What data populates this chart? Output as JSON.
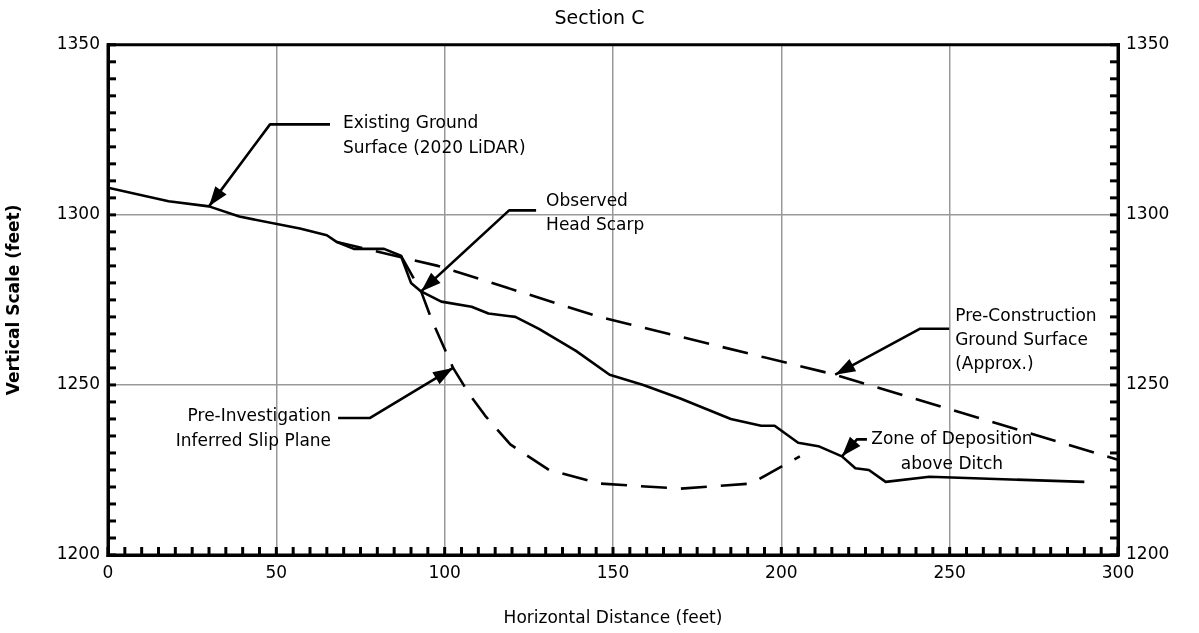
{
  "chart_data": {
    "type": "line",
    "title": "Section C",
    "xlabel": "Horizontal Distance (feet)",
    "ylabel": "Vertical Scale (feet)",
    "xlim": [
      0,
      300
    ],
    "xticks": [
      0,
      {
        "value": 5,
        "label": null
      },
      {
        "value": 10,
        "label": null
      },
      {
        "value": 15,
        "label": null
      },
      {
        "value": 20,
        "label": null
      },
      {
        "value": 25,
        "label": null
      },
      {
        "value": 30,
        "label": null
      },
      {
        "value": 35,
        "label": null
      },
      {
        "value": 40,
        "label": null
      },
      {
        "value": 45,
        "label": null
      },
      50,
      {
        "value": 55,
        "label": null
      },
      {
        "value": 60,
        "label": null
      },
      {
        "value": 65,
        "label": null
      },
      {
        "value": 70,
        "label": null
      },
      {
        "value": 75,
        "label": null
      },
      {
        "value": 80,
        "label": null
      },
      {
        "value": 85,
        "label": null
      },
      {
        "value": 90,
        "label": null
      },
      {
        "value": 95,
        "label": null
      },
      100,
      {
        "value": 105,
        "label": null
      },
      {
        "value": 110,
        "label": null
      },
      {
        "value": 115,
        "label": null
      },
      {
        "value": 120,
        "label": null
      },
      {
        "value": 125,
        "label": null
      },
      {
        "value": 130,
        "label": null
      },
      {
        "value": 135,
        "label": null
      },
      {
        "value": 140,
        "label": null
      },
      {
        "value": 145,
        "label": null
      },
      150,
      {
        "value": 155,
        "label": null
      },
      {
        "value": 160,
        "label": null
      },
      {
        "value": 165,
        "label": null
      },
      {
        "value": 170,
        "label": null
      },
      {
        "value": 175,
        "label": null
      },
      {
        "value": 180,
        "label": null
      },
      {
        "value": 185,
        "label": null
      },
      {
        "value": 190,
        "label": null
      },
      {
        "value": 195,
        "label": null
      },
      200,
      {
        "value": 205,
        "label": null
      },
      {
        "value": 210,
        "label": null
      },
      {
        "value": 215,
        "label": null
      },
      {
        "value": 220,
        "label": null
      },
      {
        "value": 225,
        "label": null
      },
      {
        "value": 230,
        "label": null
      },
      {
        "value": 235,
        "label": null
      },
      {
        "value": 240,
        "label": null
      },
      {
        "value": 245,
        "label": null
      },
      250,
      {
        "value": 255,
        "label": null
      },
      {
        "value": 260,
        "label": null
      },
      {
        "value": 265,
        "label": null
      },
      {
        "value": 270,
        "label": null
      },
      {
        "value": 275,
        "label": null
      },
      {
        "value": 280,
        "label": null
      },
      {
        "value": 285,
        "label": null
      },
      {
        "value": 290,
        "label": null
      },
      {
        "value": 295,
        "label": null
      },
      300
    ],
    "ylim": [
      1200,
      1350
    ],
    "yticks": [
      1200,
      {
        "value": 1205,
        "label": null
      },
      {
        "value": 1210,
        "label": null
      },
      {
        "value": 1215,
        "label": null
      },
      {
        "value": 1220,
        "label": null
      },
      {
        "value": 1225,
        "label": null
      },
      {
        "value": 1230,
        "label": null
      },
      {
        "value": 1235,
        "label": null
      },
      {
        "value": 1240,
        "label": null
      },
      {
        "value": 1245,
        "label": null
      },
      1250,
      {
        "value": 1255,
        "label": null
      },
      {
        "value": 1260,
        "label": null
      },
      {
        "value": 1265,
        "label": null
      },
      {
        "value": 1270,
        "label": null
      },
      {
        "value": 1275,
        "label": null
      },
      {
        "value": 1280,
        "label": null
      },
      {
        "value": 1285,
        "label": null
      },
      {
        "value": 1290,
        "label": null
      },
      {
        "value": 1295,
        "label": null
      },
      1300,
      {
        "value": 1305,
        "label": null
      },
      {
        "value": 1310,
        "label": null
      },
      {
        "value": 1315,
        "label": null
      },
      {
        "value": 1320,
        "label": null
      },
      {
        "value": 1325,
        "label": null
      },
      {
        "value": 1330,
        "label": null
      },
      {
        "value": 1335,
        "label": null
      },
      {
        "value": 1340,
        "label": null
      },
      {
        "value": 1345,
        "label": null
      },
      1350
    ],
    "y2lim": [
      1200,
      1350
    ],
    "y2ticks": [
      1200,
      {
        "value": 1205,
        "label": null
      },
      {
        "value": 1210,
        "label": null
      },
      {
        "value": 1215,
        "label": null
      },
      {
        "value": 1220,
        "label": null
      },
      {
        "value": 1225,
        "label": null
      },
      {
        "value": 1230,
        "label": null
      },
      {
        "value": 1235,
        "label": null
      },
      {
        "value": 1240,
        "label": null
      },
      {
        "value": 1245,
        "label": null
      },
      1250,
      {
        "value": 1255,
        "label": null
      },
      {
        "value": 1260,
        "label": null
      },
      {
        "value": 1265,
        "label": null
      },
      {
        "value": 1270,
        "label": null
      },
      {
        "value": 1275,
        "label": null
      },
      {
        "value": 1280,
        "label": null
      },
      {
        "value": 1285,
        "label": null
      },
      {
        "value": 1290,
        "label": null
      },
      {
        "value": 1295,
        "label": null
      },
      1300,
      {
        "value": 1305,
        "label": null
      },
      {
        "value": 1310,
        "label": null
      },
      {
        "value": 1315,
        "label": null
      },
      {
        "value": 1320,
        "label": null
      },
      {
        "value": 1325,
        "label": null
      },
      {
        "value": 1330,
        "label": null
      },
      {
        "value": 1335,
        "label": null
      },
      {
        "value": 1340,
        "label": null
      },
      {
        "value": 1345,
        "label": null
      },
      1350
    ],
    "grid": true,
    "marker": "none",
    "series": [
      {
        "color": "#000000",
        "line_style": "solid",
        "x": [
          0,
          18,
          30,
          39,
          57,
          65,
          68,
          73,
          82,
          87,
          90,
          93,
          99,
          108,
          113,
          121,
          128,
          139,
          149,
          159,
          170,
          185,
          194,
          198,
          205,
          211,
          218,
          222,
          226,
          231,
          244,
          290
        ],
        "values": [
          1308,
          1304,
          1302.5,
          1299.5,
          1296,
          1294,
          1292,
          1290,
          1290,
          1288,
          1280,
          1277.5,
          1274.5,
          1273,
          1271,
          1270,
          1266.5,
          1260,
          1253,
          1250,
          1246,
          1240,
          1238,
          1238,
          1233,
          1232,
          1229,
          1225.5,
          1225,
          1221.5,
          1223,
          1221.5
        ]
      },
      {
        "color": "#000000",
        "line_style": "dashed",
        "x": [
          68,
          98,
          146,
          216,
          300
        ],
        "values": [
          1292,
          1285,
          1270,
          1253,
          1228
        ]
      },
      {
        "color": "#000000",
        "line_style": "dashed",
        "x": [
          87,
          93,
          96,
          102.5,
          107.5,
          112,
          119.5,
          131,
          146,
          170,
          191,
          205.5
        ],
        "values": [
          1288,
          1277.5,
          1269.5,
          1255,
          1247,
          1241,
          1232.5,
          1225,
          1221,
          1219.5,
          1221,
          1229
        ]
      }
    ],
    "annotations": [
      {
        "text": "Existing Ground\nSurface (2020 LiDAR)",
        "x": 30,
        "y": 1302.5
      },
      {
        "text": "Observed\nHead Scarp",
        "x": 93,
        "y": 1277.5
      },
      {
        "text": "Pre-Construction\nGround Surface\n(Approx.)",
        "x": 216,
        "y": 1253
      },
      {
        "text": "Pre-Investigation\nInferred Slip Plane",
        "x": 102.5,
        "y": 1255
      },
      {
        "text": "Zone of Deposition\nabove Ditch",
        "x": 218,
        "y": 1229
      }
    ]
  }
}
